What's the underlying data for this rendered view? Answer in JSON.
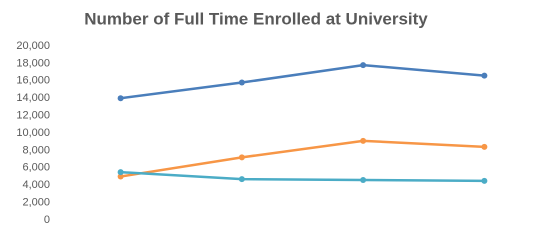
{
  "chart_data": {
    "type": "line",
    "title": "Number of Full Time Enrolled at University",
    "categories": [
      null,
      null,
      null,
      null
    ],
    "series": [
      {
        "color": "#4a7ebb",
        "values": [
          14000,
          15800,
          17800,
          16600
        ]
      },
      {
        "color": "#f79646",
        "values": [
          5000,
          7200,
          9100,
          8400
        ]
      },
      {
        "color": "#4bacc6",
        "values": [
          5500,
          4700,
          4600,
          4500
        ]
      }
    ],
    "ylim": [
      0,
      20000
    ],
    "yticks": [
      0,
      {
        "value": 2000,
        "label": "2,000"
      },
      {
        "value": 4000,
        "label": "4,000"
      },
      {
        "value": 6000,
        "label": "6,000"
      },
      {
        "value": 8000,
        "label": "8,000"
      },
      {
        "value": 10000,
        "label": "10,000"
      },
      {
        "value": 12000,
        "label": "12,000"
      },
      {
        "value": 14000,
        "label": "14,000"
      },
      {
        "value": 16000,
        "label": "16,000"
      },
      {
        "value": 18000,
        "label": "18,000"
      },
      {
        "value": 20000,
        "label": "20,000"
      }
    ],
    "grid": false
  }
}
